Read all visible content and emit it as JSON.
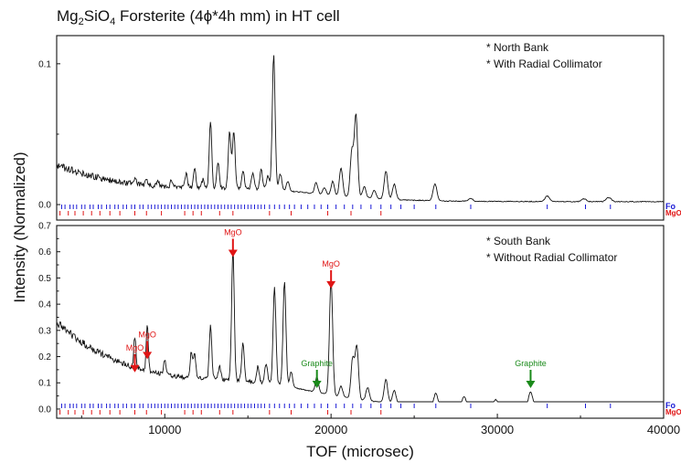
{
  "title_main": "Mg",
  "title_sub1": "2",
  "title_mid": "SiO",
  "title_sub2": "4",
  "title_rest": " Forsterite (4ϕ*4h mm) in HT cell",
  "xlabel": "TOF (microsec)",
  "ylabel": "Intensity (Normalized)",
  "colors": {
    "fo": "#1a1ad6",
    "mgo": "#e01515",
    "graphite": "#1a8a1a",
    "trace": "#111111"
  },
  "chart_data": [
    {
      "type": "line",
      "panel": "top",
      "notes": [
        "* North Bank",
        "* With Radial Collimator"
      ],
      "xlim": [
        3500,
        40000
      ],
      "ylim": [
        -0.011,
        0.12
      ],
      "yticks": [
        0.0,
        0.1
      ],
      "ytick_labels": [
        "0.0",
        "0.1"
      ],
      "baseline": {
        "start": 0.028,
        "mid": 0.006,
        "end": 0.002
      },
      "peaks": [
        [
          8250,
          0.004
        ],
        [
          8900,
          0.004
        ],
        [
          9600,
          0.004
        ],
        [
          10400,
          0.005
        ],
        [
          11300,
          0.01
        ],
        [
          11800,
          0.013
        ],
        [
          12300,
          0.006
        ],
        [
          12750,
          0.048
        ],
        [
          13200,
          0.018
        ],
        [
          13900,
          0.04
        ],
        [
          14150,
          0.041
        ],
        [
          14700,
          0.013
        ],
        [
          15300,
          0.012
        ],
        [
          15800,
          0.014
        ],
        [
          16200,
          0.01
        ],
        [
          16550,
          0.096
        ],
        [
          16950,
          0.012
        ],
        [
          17400,
          0.007
        ],
        [
          19100,
          0.008
        ],
        [
          19600,
          0.005
        ],
        [
          20100,
          0.01
        ],
        [
          20600,
          0.02
        ],
        [
          21250,
          0.032
        ],
        [
          21500,
          0.058
        ],
        [
          22000,
          0.008
        ],
        [
          22600,
          0.006
        ],
        [
          23300,
          0.02
        ],
        [
          23800,
          0.011
        ],
        [
          26250,
          0.012
        ],
        [
          28400,
          0.002
        ],
        [
          33000,
          0.004
        ],
        [
          35200,
          0.002
        ],
        [
          36700,
          0.003
        ]
      ],
      "tick_rows": [
        {
          "name": "Fo",
          "x": [
            3800,
            4000,
            4300,
            4500,
            4700,
            5000,
            5200,
            5500,
            5700,
            6000,
            6200,
            6500,
            6700,
            7000,
            7200,
            7500,
            7700,
            8000,
            8200,
            8500,
            8700,
            9000,
            9200,
            9400,
            9600,
            9800,
            10000,
            10200,
            10400,
            10600,
            10800,
            11000,
            11200,
            11400,
            11600,
            11800,
            12000,
            12200,
            12400,
            12600,
            12800,
            13000,
            13200,
            13400,
            13600,
            13800,
            14000,
            14200,
            14400,
            14600,
            14800,
            15000,
            15200,
            15400,
            15600,
            15800,
            16000,
            16300,
            16600,
            16900,
            17200,
            17500,
            17800,
            18200,
            18600,
            19000,
            19400,
            19800,
            20300,
            20800,
            21300,
            21800,
            22400,
            23000,
            23600,
            24200,
            25000,
            26300,
            28400,
            33000,
            35300,
            36800
          ]
        },
        {
          "name": "MgO",
          "x": [
            3700,
            4200,
            4600,
            5100,
            5600,
            6100,
            6700,
            7300,
            8200,
            8900,
            9800,
            11200,
            11700,
            12200,
            13300,
            14100,
            16300,
            17600,
            19800,
            21200,
            23000
          ]
        }
      ]
    },
    {
      "type": "line",
      "panel": "bottom",
      "notes": [
        "* South Bank",
        "* Without Radial Collimator"
      ],
      "xlim": [
        3500,
        40000
      ],
      "xticks": [
        10000,
        20000,
        30000,
        40000
      ],
      "xtick_labels": [
        "10000",
        "20000",
        "30000",
        "40000"
      ],
      "ylim": [
        -0.035,
        0.7
      ],
      "yticks": [
        0.0,
        0.1,
        0.2,
        0.3,
        0.4,
        0.5,
        0.6,
        0.7
      ],
      "ytick_labels": [
        "0.0",
        "0.1",
        "0.2",
        "0.3",
        "0.4",
        "0.5",
        "0.6",
        "0.7"
      ],
      "baseline": {
        "start": 0.33,
        "mid": 0.06,
        "end": 0.003
      },
      "peaks": [
        [
          8200,
          0.12
        ],
        [
          8950,
          0.17
        ],
        [
          10000,
          0.06
        ],
        [
          11600,
          0.1
        ],
        [
          11800,
          0.09
        ],
        [
          12750,
          0.2
        ],
        [
          13300,
          0.05
        ],
        [
          14100,
          0.5
        ],
        [
          14700,
          0.14
        ],
        [
          15600,
          0.06
        ],
        [
          16100,
          0.08
        ],
        [
          16600,
          0.37
        ],
        [
          17200,
          0.4
        ],
        [
          17600,
          0.06
        ],
        [
          19150,
          0.06
        ],
        [
          20000,
          0.44
        ],
        [
          20600,
          0.04
        ],
        [
          21300,
          0.15
        ],
        [
          21550,
          0.2
        ],
        [
          22200,
          0.05
        ],
        [
          23300,
          0.09
        ],
        [
          23800,
          0.05
        ],
        [
          26300,
          0.05
        ],
        [
          28000,
          0.04
        ],
        [
          29900,
          0.03
        ],
        [
          32000,
          0.06
        ],
        [
          33000,
          0.02
        ],
        [
          35300,
          0.01
        ],
        [
          36700,
          0.01
        ]
      ],
      "tick_rows": [
        {
          "name": "Fo",
          "x": [
            3800,
            4000,
            4300,
            4500,
            4700,
            5000,
            5200,
            5500,
            5700,
            6000,
            6200,
            6500,
            6700,
            7000,
            7200,
            7500,
            7700,
            8000,
            8200,
            8500,
            8700,
            9000,
            9200,
            9400,
            9600,
            9800,
            10000,
            10200,
            10400,
            10600,
            10800,
            11000,
            11200,
            11400,
            11600,
            11800,
            12000,
            12200,
            12400,
            12600,
            12800,
            13000,
            13200,
            13400,
            13600,
            13800,
            14000,
            14200,
            14400,
            14600,
            14800,
            15000,
            15200,
            15400,
            15600,
            15800,
            16000,
            16300,
            16600,
            16900,
            17200,
            17500,
            17800,
            18200,
            18600,
            19000,
            19400,
            19800,
            20300,
            20800,
            21300,
            21800,
            22400,
            23000,
            23600,
            24200,
            25000,
            26300,
            28400,
            33000,
            35300,
            36800
          ]
        },
        {
          "name": "MgO",
          "x": [
            3700,
            4200,
            4600,
            5100,
            5600,
            6100,
            6700,
            7300,
            8200,
            8900,
            9800,
            11200,
            11700,
            12200,
            13300,
            14100,
            16300,
            17600,
            19800,
            21200,
            23000
          ]
        }
      ],
      "annotations": [
        {
          "text": "MgO",
          "x": 8200,
          "y_tip": 0.14,
          "color": "#e01515"
        },
        {
          "text": "MgO",
          "x": 8950,
          "y_tip": 0.19,
          "color": "#e01515"
        },
        {
          "text": "MgO",
          "x": 14100,
          "y_tip": 0.58,
          "color": "#e01515"
        },
        {
          "text": "MgO",
          "x": 20000,
          "y_tip": 0.46,
          "color": "#e01515"
        },
        {
          "text": "Graphite",
          "x": 19150,
          "y_tip": 0.08,
          "color": "#1a8a1a"
        },
        {
          "text": "Graphite",
          "x": 32000,
          "y_tip": 0.08,
          "color": "#1a8a1a"
        }
      ]
    }
  ]
}
